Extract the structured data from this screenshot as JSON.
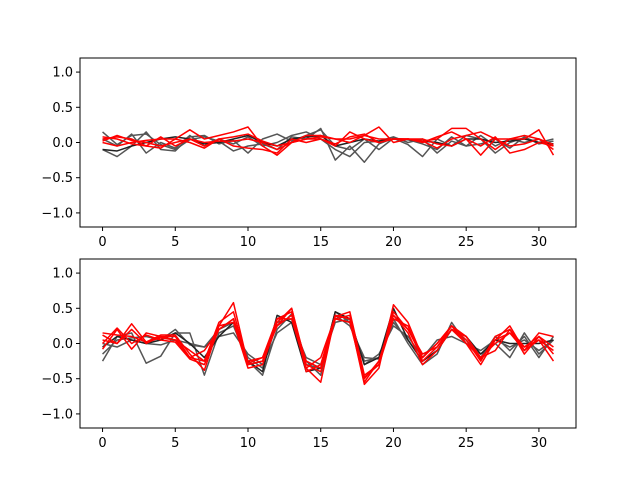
{
  "chart_data": [
    {
      "type": "line",
      "title": "",
      "xlabel": "",
      "ylabel": "",
      "xlim": [
        -1.55,
        32.55
      ],
      "ylim": [
        -1.2,
        1.2
      ],
      "xticks": [
        0,
        5,
        10,
        15,
        20,
        25,
        30
      ],
      "yticks": [
        -1.0,
        -0.5,
        0.0,
        0.5,
        1.0
      ],
      "xtick_labels": [
        "0",
        "5",
        "10",
        "15",
        "20",
        "25",
        "30"
      ],
      "ytick_labels": [
        "−1.0",
        "−0.5",
        "0.0",
        "0.5",
        "1.0"
      ],
      "grid": false,
      "x": [
        0,
        1,
        2,
        3,
        4,
        5,
        6,
        7,
        8,
        9,
        10,
        11,
        12,
        13,
        14,
        15,
        16,
        17,
        18,
        19,
        20,
        21,
        22,
        23,
        24,
        25,
        26,
        27,
        28,
        29,
        30,
        31
      ],
      "series_groups": [
        {
          "color": "#555555",
          "series": [
            {
              "values": [
                0.15,
                -0.03,
                0.1,
                0.12,
                -0.03,
                -0.1,
                0.04,
                0.08,
                0.02,
                -0.12,
                -0.05,
                -0.02,
                -0.1,
                0.08,
                0.05,
                0.2,
                -0.25,
                -0.05,
                -0.28,
                -0.02,
                0.06,
                -0.03,
                -0.2,
                0.05,
                -0.05,
                0.1,
                0.05,
                -0.15,
                0.0,
                0.07,
                0.0,
                0.05
              ]
            },
            {
              "values": [
                -0.1,
                -0.2,
                -0.05,
                0.15,
                -0.1,
                -0.12,
                0.08,
                0.1,
                -0.02,
                0.03,
                -0.15,
                0.05,
                0.12,
                0.02,
                0.1,
                0.18,
                -0.05,
                -0.1,
                0.05,
                -0.1,
                0.06,
                0.04,
                -0.02,
                -0.1,
                0.08,
                -0.05,
                0.1,
                -0.05,
                0.05,
                0.0,
                0.05,
                -0.05
              ]
            },
            {
              "values": [
                0.05,
                -0.05,
                0.12,
                -0.15,
                0.0,
                -0.08,
                0.1,
                -0.05,
                0.05,
                -0.02,
                0.08,
                -0.05,
                0.0,
                0.1,
                0.15,
                0.05,
                -0.1,
                -0.2,
                0.0,
                0.02,
                0.08,
                0.0,
                0.05,
                -0.15,
                0.02,
                -0.05,
                -0.02,
                0.05,
                -0.08,
                0.08,
                -0.02,
                0.02
              ]
            }
          ]
        },
        {
          "color": "#222222",
          "series": [
            {
              "values": [
                -0.1,
                -0.12,
                -0.05,
                0.0,
                0.05,
                0.08,
                0.05,
                -0.02,
                0.0,
                0.05,
                0.1,
                0.0,
                -0.05,
                0.05,
                0.08,
                0.1,
                -0.05,
                0.0,
                0.05,
                0.02,
                0.05,
                0.04,
                0.02,
                0.0,
                -0.05,
                0.05,
                0.05,
                0.0,
                0.02,
                0.05,
                0.0,
                -0.02
              ]
            }
          ]
        },
        {
          "color": "#ff0000",
          "series": [
            {
              "values": [
                0.0,
                -0.05,
                0.0,
                0.03,
                0.05,
                0.05,
                0.18,
                0.05,
                0.1,
                0.15,
                0.22,
                -0.05,
                -0.18,
                0.0,
                0.1,
                0.1,
                0.05,
                0.05,
                0.1,
                0.22,
                0.0,
                0.05,
                0.02,
                0.05,
                0.2,
                0.2,
                0.05,
                -0.1,
                0.05,
                0.1,
                0.05,
                -0.03
              ]
            },
            {
              "values": [
                0.05,
                0.08,
                0.05,
                -0.05,
                -0.08,
                0.05,
                0.0,
                -0.08,
                0.05,
                0.08,
                0.12,
                0.02,
                -0.05,
                0.0,
                0.05,
                0.05,
                -0.05,
                0.15,
                0.05,
                0.0,
                0.05,
                0.05,
                0.02,
                -0.08,
                0.05,
                0.1,
                0.15,
                0.05,
                -0.05,
                -0.02,
                0.05,
                -0.1
              ]
            },
            {
              "values": [
                0.08,
                0.05,
                -0.02,
                -0.05,
                0.08,
                -0.05,
                0.05,
                -0.05,
                0.05,
                -0.05,
                -0.08,
                -0.1,
                -0.15,
                0.05,
                0.0,
                0.05,
                -0.02,
                0.08,
                0.12,
                0.0,
                0.05,
                0.05,
                0.05,
                -0.02,
                -0.05,
                0.05,
                -0.05,
                0.08,
                -0.15,
                -0.1,
                0.0,
                -0.05
              ]
            },
            {
              "values": [
                0.02,
                0.1,
                0.03,
                0.0,
                -0.05,
                0.0,
                0.05,
                0.0,
                0.02,
                0.02,
                0.05,
                0.0,
                -0.1,
                0.0,
                0.05,
                0.08,
                0.05,
                0.0,
                0.1,
                0.05,
                0.05,
                0.05,
                0.0,
                0.08,
                0.15,
                0.05,
                -0.18,
                0.05,
                0.05,
                0.05,
                0.18,
                -0.18
              ]
            }
          ]
        }
      ]
    },
    {
      "type": "line",
      "title": "",
      "xlabel": "",
      "ylabel": "",
      "xlim": [
        -1.55,
        32.55
      ],
      "ylim": [
        -1.2,
        1.2
      ],
      "xticks": [
        0,
        5,
        10,
        15,
        20,
        25,
        30
      ],
      "yticks": [
        -1.0,
        -0.5,
        0.0,
        0.5,
        1.0
      ],
      "xtick_labels": [
        "0",
        "5",
        "10",
        "15",
        "20",
        "25",
        "30"
      ],
      "ytick_labels": [
        "−1.0",
        "−0.5",
        "0.0",
        "0.5",
        "1.0"
      ],
      "grid": false,
      "x": [
        0,
        1,
        2,
        3,
        4,
        5,
        6,
        7,
        8,
        9,
        10,
        11,
        12,
        13,
        14,
        15,
        16,
        17,
        18,
        19,
        20,
        21,
        22,
        23,
        24,
        25,
        26,
        27,
        28,
        29,
        30,
        31
      ],
      "series_groups": [
        {
          "color": "#555555",
          "series": [
            {
              "values": [
                -0.25,
                0.1,
                0.15,
                -0.28,
                -0.18,
                0.15,
                0.15,
                -0.45,
                0.15,
                0.25,
                -0.25,
                -0.45,
                0.2,
                0.42,
                -0.25,
                -0.45,
                0.4,
                0.25,
                -0.2,
                -0.22,
                0.35,
                0.0,
                -0.3,
                -0.15,
                0.3,
                0.0,
                -0.15,
                0.0,
                -0.2,
                0.15,
                -0.15,
                0.05
              ]
            },
            {
              "values": [
                -0.15,
                0.05,
                0.08,
                0.1,
                0.05,
                0.2,
                -0.02,
                -0.05,
                0.2,
                0.3,
                -0.2,
                -0.35,
                0.3,
                0.35,
                -0.3,
                -0.35,
                0.45,
                0.3,
                -0.25,
                -0.2,
                0.3,
                0.05,
                -0.25,
                -0.1,
                0.2,
                0.05,
                -0.2,
                0.1,
                -0.1,
                0.1,
                -0.2,
                0.1
              ]
            },
            {
              "values": [
                0.0,
                -0.05,
                0.05,
                0.0,
                -0.02,
                0.05,
                0.0,
                -0.05,
                0.1,
                0.15,
                -0.15,
                -0.3,
                0.15,
                0.3,
                -0.2,
                -0.3,
                0.3,
                0.35,
                -0.3,
                -0.15,
                0.25,
                0.1,
                -0.2,
                0.05,
                0.1,
                0.0,
                -0.1,
                0.05,
                -0.05,
                0.05,
                -0.1,
                0.05
              ]
            }
          ]
        },
        {
          "color": "#222222",
          "series": [
            {
              "values": [
                -0.05,
                0.1,
                0.05,
                0.0,
                0.05,
                0.15,
                0.0,
                -0.2,
                0.1,
                0.3,
                -0.25,
                -0.4,
                0.4,
                0.3,
                -0.4,
                -0.35,
                0.45,
                0.35,
                -0.3,
                -0.2,
                0.5,
                0.05,
                -0.25,
                -0.1,
                0.2,
                0.1,
                -0.15,
                0.05,
                0.0,
                0.0,
                0.0,
                0.05
              ]
            }
          ]
        },
        {
          "color": "#ff0000",
          "series": [
            {
              "values": [
                0.05,
                0.0,
                0.2,
                0.0,
                0.1,
                0.1,
                -0.2,
                -0.25,
                0.25,
                0.58,
                -0.3,
                -0.25,
                0.25,
                0.5,
                -0.35,
                -0.55,
                0.4,
                0.35,
                -0.58,
                -0.35,
                0.55,
                0.3,
                -0.2,
                0.0,
                0.25,
                0.0,
                -0.3,
                0.05,
                0.25,
                -0.1,
                0.05,
                -0.25
              ]
            },
            {
              "values": [
                0.12,
                0.0,
                0.28,
                0.02,
                0.12,
                0.12,
                -0.15,
                -0.38,
                0.25,
                0.3,
                -0.35,
                -0.3,
                0.3,
                0.5,
                -0.3,
                -0.4,
                0.35,
                0.3,
                -0.48,
                -0.3,
                0.45,
                0.2,
                -0.15,
                -0.05,
                0.25,
                0.05,
                -0.25,
                0.1,
                0.2,
                -0.05,
                0.1,
                -0.15
              ]
            },
            {
              "values": [
                -0.08,
                0.2,
                -0.08,
                0.15,
                0.1,
                0.05,
                -0.2,
                -0.1,
                0.2,
                0.35,
                -0.25,
                -0.2,
                0.25,
                0.4,
                -0.25,
                -0.35,
                0.35,
                0.4,
                -0.5,
                -0.25,
                0.4,
                0.15,
                -0.3,
                -0.1,
                0.2,
                0.0,
                -0.2,
                -0.1,
                0.2,
                -0.15,
                0.1,
                -0.05
              ]
            },
            {
              "values": [
                0.15,
                0.12,
                0.1,
                0.02,
                0.08,
                0.05,
                -0.1,
                -0.25,
                0.3,
                0.45,
                -0.3,
                -0.25,
                0.35,
                0.35,
                -0.35,
                -0.2,
                0.38,
                0.45,
                -0.45,
                -0.3,
                0.35,
                0.25,
                -0.25,
                -0.05,
                0.2,
                0.1,
                -0.22,
                0.05,
                0.15,
                -0.1,
                0.15,
                0.1
              ]
            },
            {
              "values": [
                0.0,
                0.22,
                0.0,
                0.12,
                0.05,
                0.02,
                -0.22,
                -0.3,
                0.2,
                0.35,
                -0.28,
                -0.2,
                0.35,
                0.45,
                -0.4,
                -0.3,
                0.4,
                0.35,
                -0.55,
                -0.25,
                0.4,
                0.2,
                -0.2,
                0.0,
                0.25,
                0.1,
                -0.2,
                0.0,
                0.15,
                -0.05,
                0.05,
                -0.1
              ]
            }
          ]
        }
      ]
    }
  ]
}
